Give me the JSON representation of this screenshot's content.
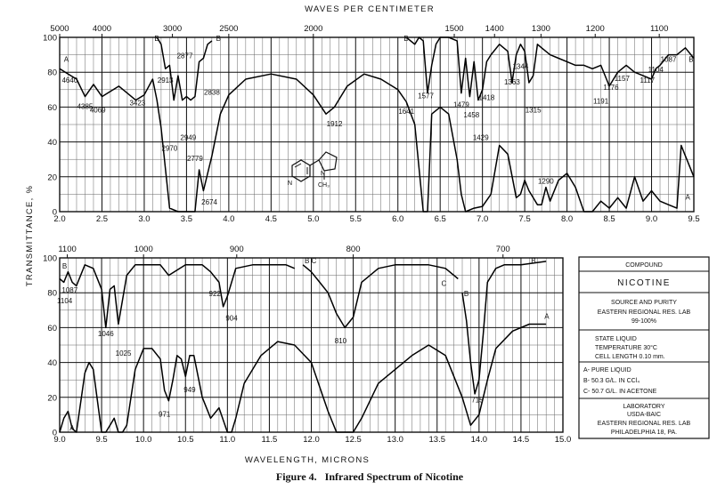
{
  "figure": {
    "caption": "Figure 4.   Infrared Spectrum of Nicotine",
    "top_axis_label": "WAVES PER CENTIMETER",
    "bottom_axis_label": "WAVELENGTH, MICRONS",
    "y_axis_label": "TRANSMITTANCE, %"
  },
  "info_box": {
    "compound_label": "COMPOUND",
    "compound_name": "NICOTINE",
    "source_label": "SOURCE AND PURITY",
    "source_line1": "EASTERN REGIONAL RES. LAB",
    "source_line2": "99-100%",
    "state_line1": "STATE   LIQUID",
    "state_line2": "TEMPERATURE  30°C",
    "state_line3": "CELL LENGTH  0.10 mm.",
    "curve_a": "A- PURE LIQUID",
    "curve_b": "B- 50.3 G/L. IN CCl₄",
    "curve_c": "C- 50.7 G/L. IN ACETONE",
    "lab_line1": "LABORATORY",
    "lab_line2": "USDA-BAIC",
    "lab_line3": "EASTERN REGIONAL RES. LAB",
    "lab_line4": "PHILADELPHIA 18, PA."
  },
  "structure": {
    "atom_n1": "N",
    "atom_n2": "N",
    "methyl": "CH₃"
  },
  "colors": {
    "ink": "#111111",
    "paper": "#ffffff",
    "grid": "#666666"
  },
  "chart_data": [
    {
      "type": "line",
      "xlabel": "",
      "ylabel": "TRANSMITTANCE, %",
      "x_unit": "microns",
      "xlim": [
        2.0,
        9.5
      ],
      "ylim": [
        0,
        100
      ],
      "grid": true,
      "x_ticks": [
        "2.0",
        "2.5",
        "3.0",
        "3.5",
        "4.0",
        "4.5",
        "5.0",
        "5.5",
        "6.0",
        "6.5",
        "7.0",
        "7.5",
        "8.0",
        "8.5",
        "9.0",
        "9.5"
      ],
      "y_ticks": [
        "0",
        "20",
        "40",
        "60",
        "80",
        "100"
      ],
      "top_axis": {
        "label": "WAVES PER CENTIMETER",
        "ticks": [
          "5000",
          "4000",
          "3000",
          "2500",
          "2000",
          "1500",
          "1400",
          "1300",
          "1200",
          "1100"
        ],
        "tick_values": [
          5000,
          4000,
          3000,
          2500,
          2000,
          1500,
          1400,
          1300,
          1200,
          1100
        ]
      },
      "series": [
        {
          "name": "A",
          "x": [
            2.0,
            2.1,
            2.2,
            2.3,
            2.4,
            2.5,
            2.7,
            2.9,
            3.0,
            3.1,
            3.15,
            3.2,
            3.3,
            3.4,
            3.5,
            3.6,
            3.65,
            3.7,
            3.8,
            3.9,
            4.0,
            4.2,
            4.5,
            4.8,
            5.0,
            5.15,
            5.25,
            5.4,
            5.6,
            5.8,
            6.0,
            6.1,
            6.2,
            6.3,
            6.35,
            6.4,
            6.5,
            6.6,
            6.7,
            6.75,
            6.8,
            6.9,
            7.0,
            7.1,
            7.2,
            7.3,
            7.4,
            7.45,
            7.5,
            7.55,
            7.6,
            7.65,
            7.7,
            7.75,
            7.8,
            7.9,
            8.0,
            8.1,
            8.2,
            8.3,
            8.4,
            8.5,
            8.6,
            8.7,
            8.8,
            8.9,
            9.0,
            9.1,
            9.2,
            9.3,
            9.35,
            9.4,
            9.5
          ],
          "y": [
            82,
            79,
            76,
            66,
            73,
            66,
            72,
            64,
            67,
            76,
            64,
            48,
            2,
            0,
            0,
            0,
            24,
            12,
            32,
            56,
            67,
            76,
            79,
            76,
            67,
            56,
            60,
            72,
            79,
            76,
            70,
            63,
            50,
            0,
            0,
            56,
            60,
            56,
            30,
            10,
            0,
            2,
            3,
            10,
            38,
            33,
            8,
            10,
            18,
            12,
            8,
            4,
            4,
            14,
            6,
            18,
            22,
            14,
            0,
            0,
            6,
            2,
            8,
            2,
            20,
            6,
            12,
            6,
            4,
            2,
            38,
            32,
            20
          ]
        },
        {
          "name": "B",
          "x": [
            3.15,
            3.2,
            3.25,
            3.3,
            3.35,
            3.4,
            3.45,
            3.5,
            3.55,
            3.6,
            3.65,
            3.7,
            3.75,
            3.8
          ],
          "y": [
            100,
            96,
            82,
            84,
            64,
            78,
            64,
            66,
            64,
            66,
            86,
            88,
            96,
            98
          ]
        },
        {
          "name": "B",
          "x": [
            6.1,
            6.2,
            6.25,
            6.3,
            6.35,
            6.4,
            6.45,
            6.5,
            6.6,
            6.7,
            6.75,
            6.8,
            6.85,
            6.9,
            6.95,
            7.0,
            7.05,
            7.1,
            7.2,
            7.3,
            7.35,
            7.4,
            7.45,
            7.5,
            7.55,
            7.6,
            7.65,
            7.7,
            7.8,
            7.9,
            8.0,
            8.1,
            8.2,
            8.3,
            8.4,
            8.5,
            8.55,
            8.6,
            8.7,
            8.8,
            8.9,
            9.0,
            9.05,
            9.1,
            9.2,
            9.3,
            9.4,
            9.5
          ],
          "y": [
            100,
            96,
            100,
            98,
            68,
            84,
            96,
            100,
            100,
            98,
            68,
            88,
            66,
            86,
            64,
            70,
            86,
            90,
            96,
            92,
            74,
            90,
            96,
            92,
            74,
            78,
            96,
            94,
            90,
            88,
            86,
            84,
            84,
            82,
            84,
            72,
            76,
            80,
            84,
            80,
            78,
            76,
            82,
            84,
            90,
            90,
            94,
            88
          ]
        }
      ],
      "peak_labels": [
        {
          "text": "4640",
          "x": 2.12,
          "y": 74
        },
        {
          "text": "4385",
          "x": 2.3,
          "y": 59
        },
        {
          "text": "4069",
          "x": 2.45,
          "y": 57
        },
        {
          "text": "3423",
          "x": 2.92,
          "y": 61
        },
        {
          "text": "2913",
          "x": 3.25,
          "y": 74
        },
        {
          "text": "2877",
          "x": 3.48,
          "y": 88
        },
        {
          "text": "2838",
          "x": 3.8,
          "y": 67
        },
        {
          "text": "2949",
          "x": 3.52,
          "y": 41
        },
        {
          "text": "2970",
          "x": 3.3,
          "y": 35
        },
        {
          "text": "2779",
          "x": 3.6,
          "y": 29
        },
        {
          "text": "2674",
          "x": 3.77,
          "y": 4
        },
        {
          "text": "1912",
          "x": 5.25,
          "y": 49
        },
        {
          "text": "1641",
          "x": 6.1,
          "y": 56
        },
        {
          "text": "1577",
          "x": 6.33,
          "y": 65
        },
        {
          "text": "1479",
          "x": 6.75,
          "y": 60
        },
        {
          "text": "1458",
          "x": 6.87,
          "y": 54
        },
        {
          "text": "1418",
          "x": 7.05,
          "y": 64
        },
        {
          "text": "1429",
          "x": 6.98,
          "y": 41
        },
        {
          "text": "1363",
          "x": 7.35,
          "y": 73
        },
        {
          "text": "1344",
          "x": 7.45,
          "y": 82
        },
        {
          "text": "1315",
          "x": 7.6,
          "y": 57
        },
        {
          "text": "1290",
          "x": 7.75,
          "y": 16
        },
        {
          "text": "1191",
          "x": 8.4,
          "y": 62
        },
        {
          "text": "1176",
          "x": 8.52,
          "y": 70
        },
        {
          "text": "1157",
          "x": 8.65,
          "y": 75
        },
        {
          "text": "1117",
          "x": 8.95,
          "y": 74
        },
        {
          "text": "1104",
          "x": 9.05,
          "y": 80
        },
        {
          "text": "1087",
          "x": 9.2,
          "y": 86
        }
      ],
      "curve_letters": [
        {
          "text": "A",
          "x": 2.05,
          "y": 86
        },
        {
          "text": "B",
          "x": 3.12,
          "y": 98
        },
        {
          "text": "B",
          "x": 3.85,
          "y": 98
        },
        {
          "text": "B",
          "x": 6.07,
          "y": 98
        },
        {
          "text": "B",
          "x": 9.44,
          "y": 86
        },
        {
          "text": "A",
          "x": 9.4,
          "y": 7
        }
      ]
    },
    {
      "type": "line",
      "xlabel": "WAVELENGTH, MICRONS",
      "ylabel": "TRANSMITTANCE, %",
      "x_unit": "microns",
      "xlim": [
        9.0,
        15.0
      ],
      "ylim": [
        0,
        100
      ],
      "grid": true,
      "x_ticks": [
        "9.0",
        "9.5",
        "10.0",
        "10.5",
        "11.0",
        "11.5",
        "12.0",
        "12.5",
        "13.0",
        "13.5",
        "14.0",
        "14.5",
        "15.0"
      ],
      "y_ticks": [
        "0",
        "20",
        "40",
        "60",
        "80",
        "100"
      ],
      "top_axis": {
        "ticks": [
          "1100",
          "1000",
          "900",
          "800",
          "700"
        ],
        "tick_values": [
          1100,
          1000,
          900,
          800,
          700
        ]
      },
      "series": [
        {
          "name": "A",
          "x": [
            9.0,
            9.05,
            9.1,
            9.15,
            9.2,
            9.3,
            9.35,
            9.4,
            9.5,
            9.55,
            9.6,
            9.65,
            9.7,
            9.75,
            9.8,
            9.9,
            10.0,
            10.1,
            10.2,
            10.25,
            10.3,
            10.35,
            10.4,
            10.45,
            10.5,
            10.55,
            10.6,
            10.7,
            10.8,
            10.9,
            11.0,
            11.05,
            11.1,
            11.2,
            11.4,
            11.6,
            11.8,
            12.0,
            12.2,
            12.3,
            12.4,
            12.5,
            12.6,
            12.8,
            13.0,
            13.2,
            13.4,
            13.6,
            13.8,
            13.9,
            14.0,
            14.1,
            14.2,
            14.4,
            14.6,
            14.8
          ],
          "y": [
            0,
            8,
            12,
            2,
            0,
            34,
            40,
            36,
            0,
            0,
            4,
            8,
            0,
            0,
            4,
            36,
            48,
            48,
            42,
            24,
            18,
            30,
            44,
            42,
            32,
            44,
            44,
            20,
            8,
            14,
            0,
            0,
            8,
            28,
            44,
            52,
            50,
            40,
            12,
            0,
            0,
            0,
            8,
            28,
            36,
            44,
            50,
            44,
            20,
            4,
            10,
            30,
            48,
            58,
            62,
            62
          ]
        },
        {
          "name": "B",
          "x": [
            9.0,
            9.05,
            9.1,
            9.15,
            9.2,
            9.3,
            9.4,
            9.5,
            9.55,
            9.6,
            9.65,
            9.7,
            9.8,
            9.9,
            10.0,
            10.2,
            10.3,
            10.5,
            10.7,
            10.8,
            10.9,
            10.95,
            11.0,
            11.1,
            11.3,
            11.5,
            11.7,
            11.8
          ],
          "y": [
            88,
            86,
            92,
            86,
            84,
            96,
            94,
            82,
            60,
            82,
            84,
            62,
            90,
            96,
            96,
            96,
            90,
            96,
            96,
            92,
            86,
            72,
            78,
            94,
            96,
            96,
            96,
            94
          ]
        },
        {
          "name": "C",
          "x": [
            11.9,
            12.0,
            12.1,
            12.2,
            12.3,
            12.4,
            12.5,
            12.6,
            12.8,
            13.0,
            13.2,
            13.4,
            13.6,
            13.7,
            13.75
          ],
          "y": [
            96,
            92,
            86,
            80,
            68,
            60,
            66,
            86,
            94,
            96,
            96,
            96,
            94,
            90,
            88
          ]
        },
        {
          "name": "B",
          "x": [
            13.8,
            13.85,
            13.9,
            13.95,
            14.0,
            14.05,
            14.1,
            14.2,
            14.3,
            14.5,
            14.8
          ],
          "y": [
            80,
            64,
            40,
            22,
            30,
            56,
            86,
            94,
            96,
            96,
            98
          ]
        }
      ],
      "peak_labels": [
        {
          "text": "1087",
          "x": 9.12,
          "y": 80
        },
        {
          "text": "1104",
          "x": 9.06,
          "y": 74
        },
        {
          "text": "1046",
          "x": 9.55,
          "y": 55
        },
        {
          "text": "1025",
          "x": 9.76,
          "y": 44
        },
        {
          "text": "922",
          "x": 10.85,
          "y": 78
        },
        {
          "text": "904",
          "x": 11.05,
          "y": 64
        },
        {
          "text": "810",
          "x": 12.35,
          "y": 51
        },
        {
          "text": "971",
          "x": 10.25,
          "y": 9
        },
        {
          "text": "949",
          "x": 10.55,
          "y": 23
        },
        {
          "text": "715",
          "x": 13.98,
          "y": 17
        }
      ],
      "curve_letters": [
        {
          "text": "B",
          "x": 9.03,
          "y": 94
        },
        {
          "text": "A",
          "x": 9.12,
          "y": 1
        },
        {
          "text": "B C",
          "x": 11.92,
          "y": 97
        },
        {
          "text": "C",
          "x": 13.55,
          "y": 84
        },
        {
          "text": "B",
          "x": 13.82,
          "y": 78
        },
        {
          "text": "B",
          "x": 14.62,
          "y": 97
        },
        {
          "text": "A",
          "x": 14.78,
          "y": 65
        }
      ]
    }
  ]
}
